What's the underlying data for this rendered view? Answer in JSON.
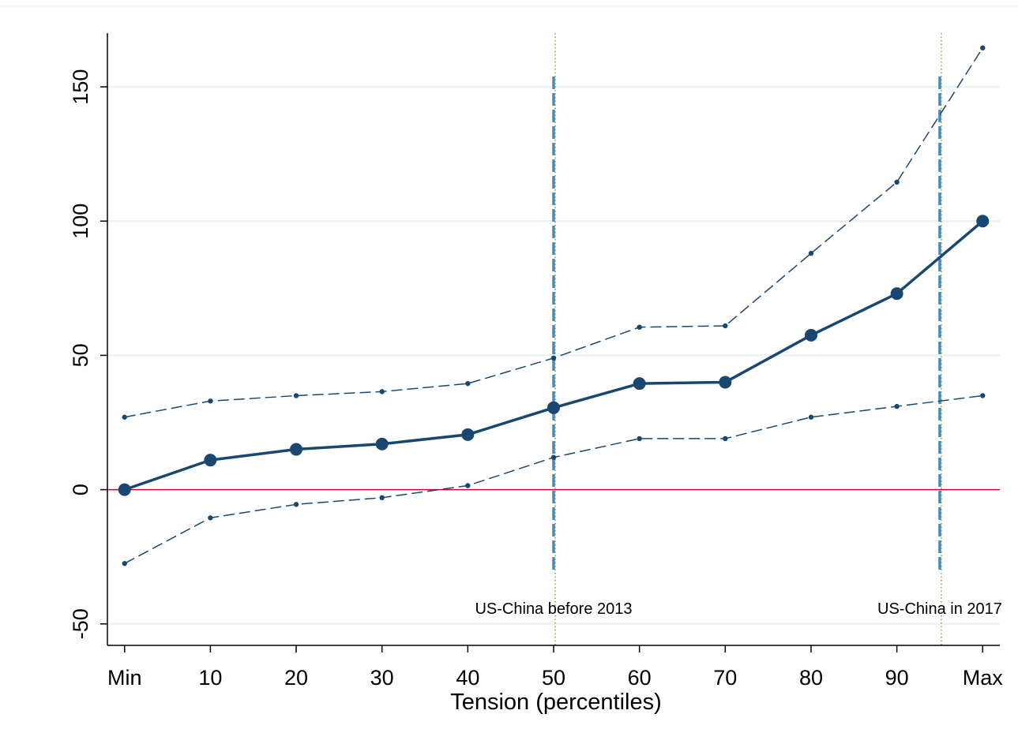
{
  "chart_data": {
    "type": "line",
    "title": "",
    "xlabel": "Tension (percentiles)",
    "ylabel": "",
    "categories": [
      "Min",
      "10",
      "20",
      "30",
      "40",
      "50",
      "60",
      "70",
      "80",
      "90",
      "Max"
    ],
    "x": [
      0,
      10,
      20,
      30,
      40,
      50,
      60,
      70,
      80,
      90,
      100
    ],
    "xlim": [
      -2,
      102
    ],
    "ylim": [
      -58,
      170
    ],
    "yticks": [
      -50,
      0,
      50,
      100,
      150
    ],
    "ytick_labels": [
      "-50",
      "0",
      "50",
      "100",
      "150"
    ],
    "grid": true,
    "legend": "none",
    "series": [
      {
        "role": "estimate",
        "values": [
          0,
          11,
          15,
          17,
          20.5,
          30.5,
          39.5,
          40,
          57.5,
          73,
          100
        ]
      },
      {
        "role": "upper-ci",
        "values": [
          27,
          33,
          35,
          36.5,
          39.5,
          49,
          60.5,
          61,
          88,
          114.5,
          164.5
        ]
      },
      {
        "role": "lower-ci",
        "values": [
          -27.5,
          -10.5,
          -5.5,
          -3,
          1.5,
          12,
          19,
          19,
          27,
          31,
          35
        ]
      }
    ],
    "reference_lines": {
      "horizontal_zero": 0,
      "vertical": [
        {
          "x": 50,
          "label": "US-China before 2013"
        },
        {
          "x": 95,
          "label": "US-China in 2017"
        }
      ]
    },
    "colors": {
      "series": "#1a476f",
      "zero_line": "#c10534",
      "vline": "#4a8bb5",
      "vline_dotted": "#6aaf3d",
      "grid": "#eaf2f3",
      "axis": "#000000"
    }
  }
}
